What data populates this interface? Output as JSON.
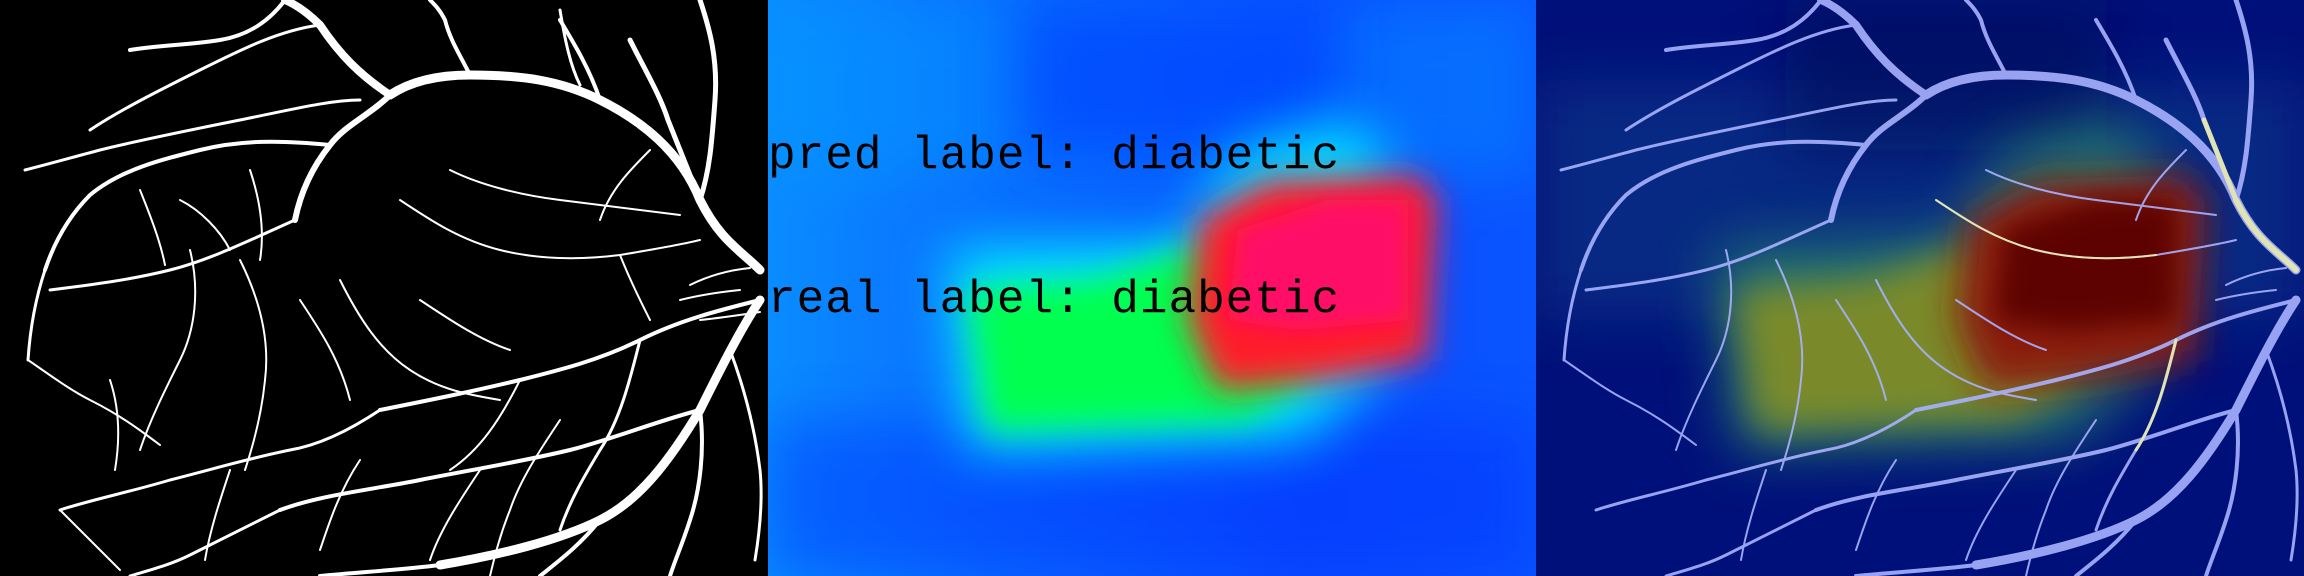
{
  "panels": {
    "mask": {
      "background": "#000000",
      "vessel_color": "#ffffff"
    },
    "heatmap": {
      "pred_label": "pred label: diabetic",
      "real_label": "real label: diabetic"
    },
    "overlay": {
      "background": "#00107a",
      "vessel_color": "#a9b2ff"
    }
  }
}
